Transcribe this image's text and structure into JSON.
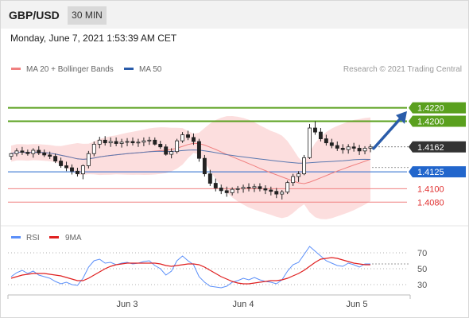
{
  "header": {
    "symbol": "GBP/USD",
    "timeframe": "30 MIN"
  },
  "datetime": "Monday, June 7, 2021 1:53:39 AM CET",
  "chart_data": [
    {
      "type": "candlestick",
      "legend": [
        {
          "name": "MA 20 + Bollinger Bands",
          "color": "#f08080"
        },
        {
          "name": "MA 50",
          "color": "#2a5caa"
        }
      ],
      "watermark": "Research © 2021 Trading Central",
      "x_ticks": [
        "Jun 3",
        "Jun 4",
        "Jun 5"
      ],
      "price_levels": [
        {
          "value": 1.422,
          "label": "1.4220",
          "type": "target",
          "color": "#5aa01e"
        },
        {
          "value": 1.42,
          "label": "1.4200",
          "type": "target",
          "color": "#5aa01e"
        },
        {
          "value": 1.4162,
          "label": "1.4162",
          "type": "last-price",
          "color": "#333333"
        },
        {
          "value": 1.4125,
          "label": "1.4125",
          "type": "pivot",
          "color": "#2266cc"
        },
        {
          "value": 1.41,
          "label": "1.4100",
          "type": "support",
          "color": "#f08080"
        },
        {
          "value": 1.408,
          "label": "1.4080",
          "type": "support",
          "color": "#f08080"
        }
      ],
      "arrow": {
        "direction": "up",
        "from": 1.4162,
        "to": 1.4215,
        "color": "#2a5caa"
      },
      "y_range": [
        1.4052,
        1.4262
      ],
      "candles": [
        [
          1.4148,
          1.4153,
          1.4143,
          1.4152
        ],
        [
          1.4152,
          1.416,
          1.4148,
          1.4156
        ],
        [
          1.4156,
          1.4162,
          1.415,
          1.4154
        ],
        [
          1.4154,
          1.4158,
          1.4149,
          1.4152
        ],
        [
          1.4152,
          1.416,
          1.4146,
          1.4157
        ],
        [
          1.4157,
          1.4163,
          1.415,
          1.4153
        ],
        [
          1.4153,
          1.4158,
          1.4147,
          1.415
        ],
        [
          1.415,
          1.4155,
          1.4144,
          1.4148
        ],
        [
          1.4148,
          1.4152,
          1.4138,
          1.4141
        ],
        [
          1.4141,
          1.4146,
          1.4131,
          1.4134
        ],
        [
          1.4134,
          1.414,
          1.4126,
          1.4131
        ],
        [
          1.4131,
          1.4136,
          1.4121,
          1.4126
        ],
        [
          1.4126,
          1.4131,
          1.4118,
          1.4122
        ],
        [
          1.4122,
          1.4136,
          1.4114,
          1.4134
        ],
        [
          1.4134,
          1.4156,
          1.413,
          1.4152
        ],
        [
          1.4152,
          1.417,
          1.4148,
          1.4166
        ],
        [
          1.4166,
          1.4177,
          1.416,
          1.4172
        ],
        [
          1.4172,
          1.4178,
          1.4164,
          1.4168
        ],
        [
          1.4168,
          1.4176,
          1.4162,
          1.417
        ],
        [
          1.417,
          1.4176,
          1.4163,
          1.4167
        ],
        [
          1.4167,
          1.4174,
          1.4161,
          1.4169
        ],
        [
          1.4169,
          1.4175,
          1.4163,
          1.417
        ],
        [
          1.417,
          1.4176,
          1.4164,
          1.4168
        ],
        [
          1.4168,
          1.4174,
          1.4162,
          1.4169
        ],
        [
          1.4169,
          1.4176,
          1.4163,
          1.4171
        ],
        [
          1.4171,
          1.4177,
          1.4165,
          1.4172
        ],
        [
          1.4172,
          1.4176,
          1.4164,
          1.4166
        ],
        [
          1.4166,
          1.4171,
          1.4159,
          1.4162
        ],
        [
          1.4162,
          1.4166,
          1.4149,
          1.4151
        ],
        [
          1.4151,
          1.416,
          1.4145,
          1.4155
        ],
        [
          1.4155,
          1.4174,
          1.4152,
          1.4171
        ],
        [
          1.4171,
          1.4184,
          1.4168,
          1.418
        ],
        [
          1.418,
          1.4186,
          1.4172,
          1.4176
        ],
        [
          1.4176,
          1.4182,
          1.4165,
          1.417
        ],
        [
          1.417,
          1.4174,
          1.414,
          1.4145
        ],
        [
          1.4145,
          1.415,
          1.4118,
          1.4122
        ],
        [
          1.4122,
          1.4128,
          1.4104,
          1.4108
        ],
        [
          1.4108,
          1.4115,
          1.4096,
          1.4101
        ],
        [
          1.4101,
          1.4106,
          1.4092,
          1.4097
        ],
        [
          1.4097,
          1.4103,
          1.4088,
          1.4094
        ],
        [
          1.4094,
          1.4102,
          1.409,
          1.4099
        ],
        [
          1.4099,
          1.4104,
          1.4093,
          1.41
        ],
        [
          1.41,
          1.4106,
          1.4094,
          1.4102
        ],
        [
          1.4102,
          1.4108,
          1.4096,
          1.4101
        ],
        [
          1.4101,
          1.4107,
          1.4095,
          1.4103
        ],
        [
          1.4103,
          1.4108,
          1.4096,
          1.41
        ],
        [
          1.41,
          1.4105,
          1.4092,
          1.4098
        ],
        [
          1.4098,
          1.4103,
          1.409,
          1.4096
        ],
        [
          1.4096,
          1.4101,
          1.4086,
          1.4092
        ],
        [
          1.4092,
          1.4098,
          1.4084,
          1.4095
        ],
        [
          1.4095,
          1.4112,
          1.4092,
          1.4109
        ],
        [
          1.4109,
          1.4122,
          1.4104,
          1.4118
        ],
        [
          1.4118,
          1.4126,
          1.411,
          1.4122
        ],
        [
          1.4122,
          1.415,
          1.412,
          1.4146
        ],
        [
          1.4146,
          1.4196,
          1.4144,
          1.419
        ],
        [
          1.419,
          1.42,
          1.418,
          1.4184
        ],
        [
          1.4184,
          1.419,
          1.417,
          1.4174
        ],
        [
          1.4174,
          1.418,
          1.4164,
          1.4168
        ],
        [
          1.4168,
          1.4174,
          1.416,
          1.4164
        ],
        [
          1.4164,
          1.417,
          1.4156,
          1.416
        ],
        [
          1.416,
          1.4166,
          1.4152,
          1.4158
        ],
        [
          1.4158,
          1.4166,
          1.4152,
          1.4162
        ],
        [
          1.4162,
          1.4168,
          1.4155,
          1.416
        ],
        [
          1.416,
          1.4165,
          1.415,
          1.4156
        ],
        [
          1.4156,
          1.4163,
          1.4151,
          1.416
        ],
        [
          1.416,
          1.4166,
          1.4154,
          1.4162
        ]
      ]
    },
    {
      "type": "line",
      "legend": [
        {
          "name": "RSI",
          "color": "#5b8ff9"
        },
        {
          "name": "9MA",
          "color": "#e02020"
        }
      ],
      "y_ticks": [
        70,
        50,
        30
      ],
      "ylim": [
        20,
        80
      ],
      "series": [
        {
          "name": "RSI",
          "values": [
            40,
            45,
            48,
            44,
            47,
            42,
            40,
            38,
            34,
            31,
            33,
            30,
            29,
            38,
            52,
            60,
            62,
            57,
            58,
            55,
            57,
            58,
            56,
            57,
            59,
            60,
            54,
            50,
            42,
            47,
            60,
            66,
            60,
            55,
            40,
            33,
            28,
            27,
            26,
            28,
            33,
            35,
            38,
            36,
            39,
            36,
            34,
            33,
            31,
            36,
            47,
            55,
            58,
            68,
            78,
            72,
            66,
            60,
            57,
            54,
            53,
            57,
            55,
            52,
            56,
            56
          ]
        },
        {
          "name": "9MA",
          "values": [
            38,
            40,
            42,
            43,
            44,
            44,
            44,
            43,
            42,
            41,
            39,
            37,
            35,
            35,
            38,
            42,
            46,
            50,
            53,
            55,
            56,
            57,
            57,
            57,
            57,
            57,
            57,
            56,
            54,
            53,
            54,
            55,
            56,
            56,
            55,
            52,
            48,
            44,
            40,
            37,
            34,
            32,
            31,
            31,
            32,
            33,
            34,
            35,
            35,
            36,
            38,
            41,
            44,
            48,
            53,
            58,
            62,
            63,
            64,
            63,
            61,
            59,
            57,
            56,
            55,
            55
          ]
        }
      ]
    }
  ]
}
